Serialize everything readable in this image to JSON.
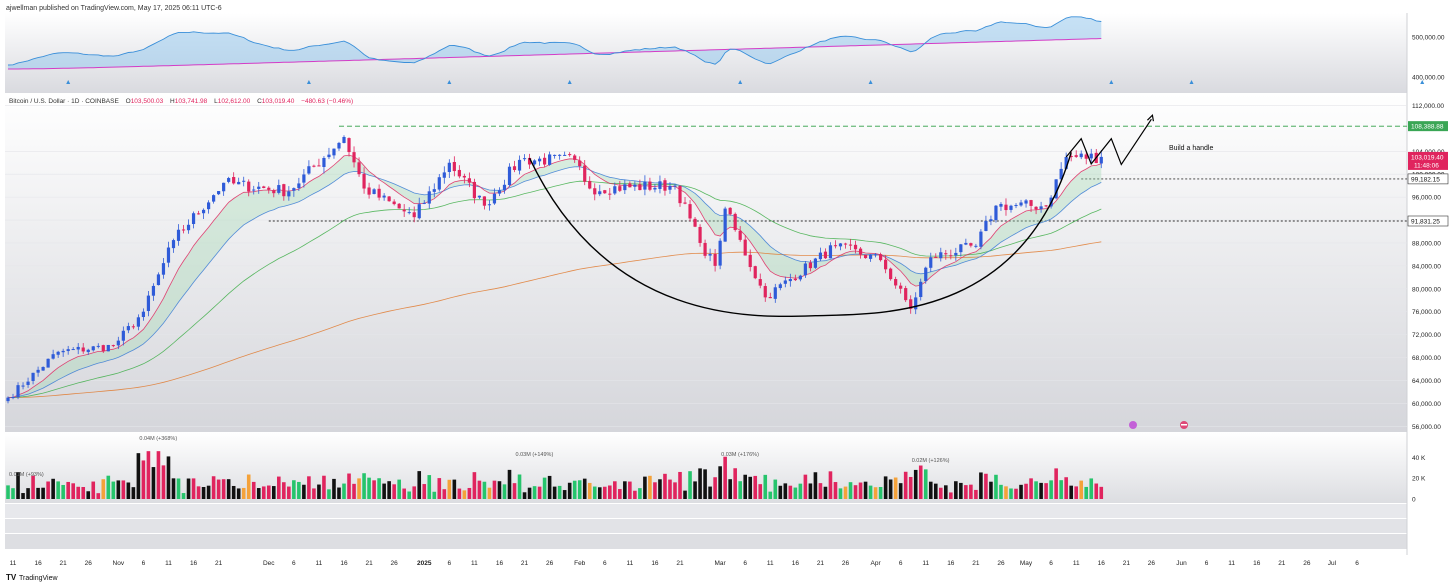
{
  "header": {
    "publisher": "ajwellman published on TradingView.com, May 17, 2025 06:11 UTC-6",
    "footer_brand": "TradingView"
  },
  "symbol": {
    "name": "Bitcoin / U.S. Dollar · 1D · COINBASE",
    "open_label": "O",
    "open": "103,500.03",
    "high_label": "H",
    "high": "103,741.98",
    "low_label": "L",
    "low": "102,612.00",
    "close_label": "C",
    "close": "103,019.40",
    "change": "−480.63 (−0.46%)"
  },
  "annotation": "Build a handle",
  "colors": {
    "up": "#2f5bd8",
    "down": "#e0245e",
    "ema_fast": "#e0245e",
    "ema_mid": "#3a7bd5",
    "ema_slow": "#3fae49",
    "ema_long": "#e07a2f",
    "resistance": "#2e9e44",
    "support": "#333333",
    "vol_up": "#26c46c",
    "vol_down": "#e0245e",
    "vol_neutral": "#111111",
    "vol_orange": "#f4a23a"
  },
  "chart_data": [
    {
      "type": "line",
      "title": "",
      "panel": "top indicator",
      "y_ticks": [
        400000,
        500000
      ],
      "y_tick_labels": [
        "400,000.00",
        "500,000.00"
      ]
    },
    {
      "type": "candlestick",
      "title": "Bitcoin / U.S. Dollar · 1D · COINBASE",
      "ylim": [
        55000,
        114000
      ],
      "y_ticks": [
        56000,
        60000,
        64000,
        68000,
        72000,
        76000,
        80000,
        84000,
        88000,
        92000,
        96000,
        100000,
        104000,
        112000
      ],
      "y_tick_labels": [
        "56,000.00",
        "60,000.00",
        "64,000.00",
        "68,000.00",
        "72,000.00",
        "76,000.00",
        "80,000.00",
        "84,000.00",
        "88,000.00",
        "92,000.00",
        "96,000.00",
        "100,000.00",
        "104,000.00",
        "112,000.00"
      ],
      "x_ticks": [
        "11",
        "16",
        "21",
        "26",
        "Nov",
        "6",
        "11",
        "16",
        "21",
        "Dec",
        "6",
        "11",
        "16",
        "21",
        "26",
        "2025",
        "6",
        "11",
        "16",
        "21",
        "26",
        "Feb",
        "6",
        "11",
        "16",
        "21",
        "Mar",
        "6",
        "11",
        "16",
        "21",
        "26",
        "Apr",
        "6",
        "11",
        "16",
        "21",
        "26",
        "May",
        "6",
        "11",
        "16",
        "21",
        "26",
        "Jun",
        "6",
        "11",
        "16",
        "21",
        "26",
        "Jul",
        "6"
      ],
      "key_levels": [
        {
          "label": "108,388.88",
          "value": 108388.88,
          "style": "dashed-green"
        },
        {
          "label": "99,182.15",
          "value": 99182.15,
          "style": "dotted-dark"
        },
        {
          "label": "91,831.25",
          "value": 91831.25,
          "style": "dotted-dark"
        }
      ],
      "last_price_label": "103,019.40",
      "countdown_label": "11:48:06",
      "anchors": [
        {
          "date": "2024-10-10",
          "close": 61000
        },
        {
          "date": "2024-10-20",
          "close": 69000
        },
        {
          "date": "2024-10-31",
          "close": 70000
        },
        {
          "date": "2024-11-06",
          "close": 76000
        },
        {
          "date": "2024-11-12",
          "close": 88500
        },
        {
          "date": "2024-11-22",
          "close": 98500
        },
        {
          "date": "2024-12-05",
          "close": 97000
        },
        {
          "date": "2024-12-16",
          "close": 106500
        },
        {
          "date": "2024-12-20",
          "close": 97500
        },
        {
          "date": "2024-12-30",
          "close": 92500
        },
        {
          "date": "2025-01-06",
          "close": 102000
        },
        {
          "date": "2025-01-13",
          "close": 94500
        },
        {
          "date": "2025-01-20",
          "close": 102500
        },
        {
          "date": "2025-01-31",
          "close": 102500
        },
        {
          "date": "2025-02-03",
          "close": 97500
        },
        {
          "date": "2025-02-20",
          "close": 98000
        },
        {
          "date": "2025-02-25",
          "close": 88000
        },
        {
          "date": "2025-02-28",
          "close": 84000
        },
        {
          "date": "2025-03-02",
          "close": 94000
        },
        {
          "date": "2025-03-10",
          "close": 78500
        },
        {
          "date": "2025-03-24",
          "close": 87500
        },
        {
          "date": "2025-04-02",
          "close": 85000
        },
        {
          "date": "2025-04-08",
          "close": 76500
        },
        {
          "date": "2025-04-12",
          "close": 85500
        },
        {
          "date": "2025-04-21",
          "close": 87500
        },
        {
          "date": "2025-04-25",
          "close": 94500
        },
        {
          "date": "2025-05-05",
          "close": 94500
        },
        {
          "date": "2025-05-09",
          "close": 103000
        },
        {
          "date": "2025-05-16",
          "close": 103019.4
        }
      ]
    },
    {
      "type": "bar",
      "title": "",
      "panel": "volume",
      "y_ticks": [
        0,
        20000,
        40000
      ],
      "y_tick_labels": [
        "0",
        "20 K",
        "40 K"
      ],
      "annotations": [
        {
          "label": "0.01M (+93%)",
          "date": "2024-10-11"
        },
        {
          "label": "0.04M (+368%)",
          "date": "2024-11-06"
        },
        {
          "label": "0.03M (+149%)",
          "date": "2025-01-20"
        },
        {
          "label": "0.03M (+176%)",
          "date": "2025-03-02"
        },
        {
          "label": "0.02M (+126%)",
          "date": "2025-04-09"
        }
      ]
    }
  ]
}
